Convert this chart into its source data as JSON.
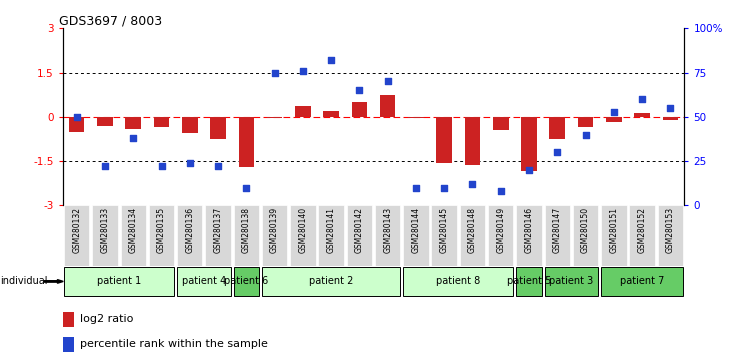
{
  "title": "GDS3697 / 8003",
  "samples": [
    "GSM280132",
    "GSM280133",
    "GSM280134",
    "GSM280135",
    "GSM280136",
    "GSM280137",
    "GSM280138",
    "GSM280139",
    "GSM280140",
    "GSM280141",
    "GSM280142",
    "GSM280143",
    "GSM280144",
    "GSM280145",
    "GSM280148",
    "GSM280149",
    "GSM280146",
    "GSM280147",
    "GSM280150",
    "GSM280151",
    "GSM280152",
    "GSM280153"
  ],
  "log2_ratio": [
    -0.5,
    -0.3,
    -0.4,
    -0.35,
    -0.55,
    -0.75,
    -1.7,
    -0.05,
    0.35,
    0.2,
    0.5,
    0.75,
    -0.05,
    -1.55,
    -1.65,
    -0.45,
    -1.85,
    -0.75,
    -0.35,
    -0.18,
    0.12,
    -0.1
  ],
  "percentile_rank": [
    50,
    22,
    38,
    22,
    24,
    22,
    10,
    75,
    76,
    82,
    65,
    70,
    10,
    10,
    12,
    8,
    20,
    30,
    40,
    53,
    60,
    55
  ],
  "patients": [
    {
      "label": "patient 1",
      "start": 0,
      "end": 4,
      "color": "#ccffcc"
    },
    {
      "label": "patient 4",
      "start": 4,
      "end": 6,
      "color": "#ccffcc"
    },
    {
      "label": "patient 6",
      "start": 6,
      "end": 7,
      "color": "#66cc66"
    },
    {
      "label": "patient 2",
      "start": 7,
      "end": 12,
      "color": "#ccffcc"
    },
    {
      "label": "patient 8",
      "start": 12,
      "end": 16,
      "color": "#ccffcc"
    },
    {
      "label": "patient 5",
      "start": 16,
      "end": 17,
      "color": "#66cc66"
    },
    {
      "label": "patient 3",
      "start": 17,
      "end": 19,
      "color": "#66cc66"
    },
    {
      "label": "patient 7",
      "start": 19,
      "end": 22,
      "color": "#66cc66"
    }
  ],
  "ylim_left": [
    -3,
    3
  ],
  "ylim_right": [
    0,
    100
  ],
  "yticks_left": [
    -3,
    -1.5,
    0,
    1.5,
    3
  ],
  "yticks_right": [
    0,
    25,
    50,
    75,
    100
  ],
  "ytick_labels_right": [
    "0",
    "25",
    "50",
    "75",
    "100%"
  ],
  "bar_color": "#cc2222",
  "dot_color": "#2244cc",
  "sample_bg": "#d8d8d8",
  "fig_bg": "#ffffff"
}
